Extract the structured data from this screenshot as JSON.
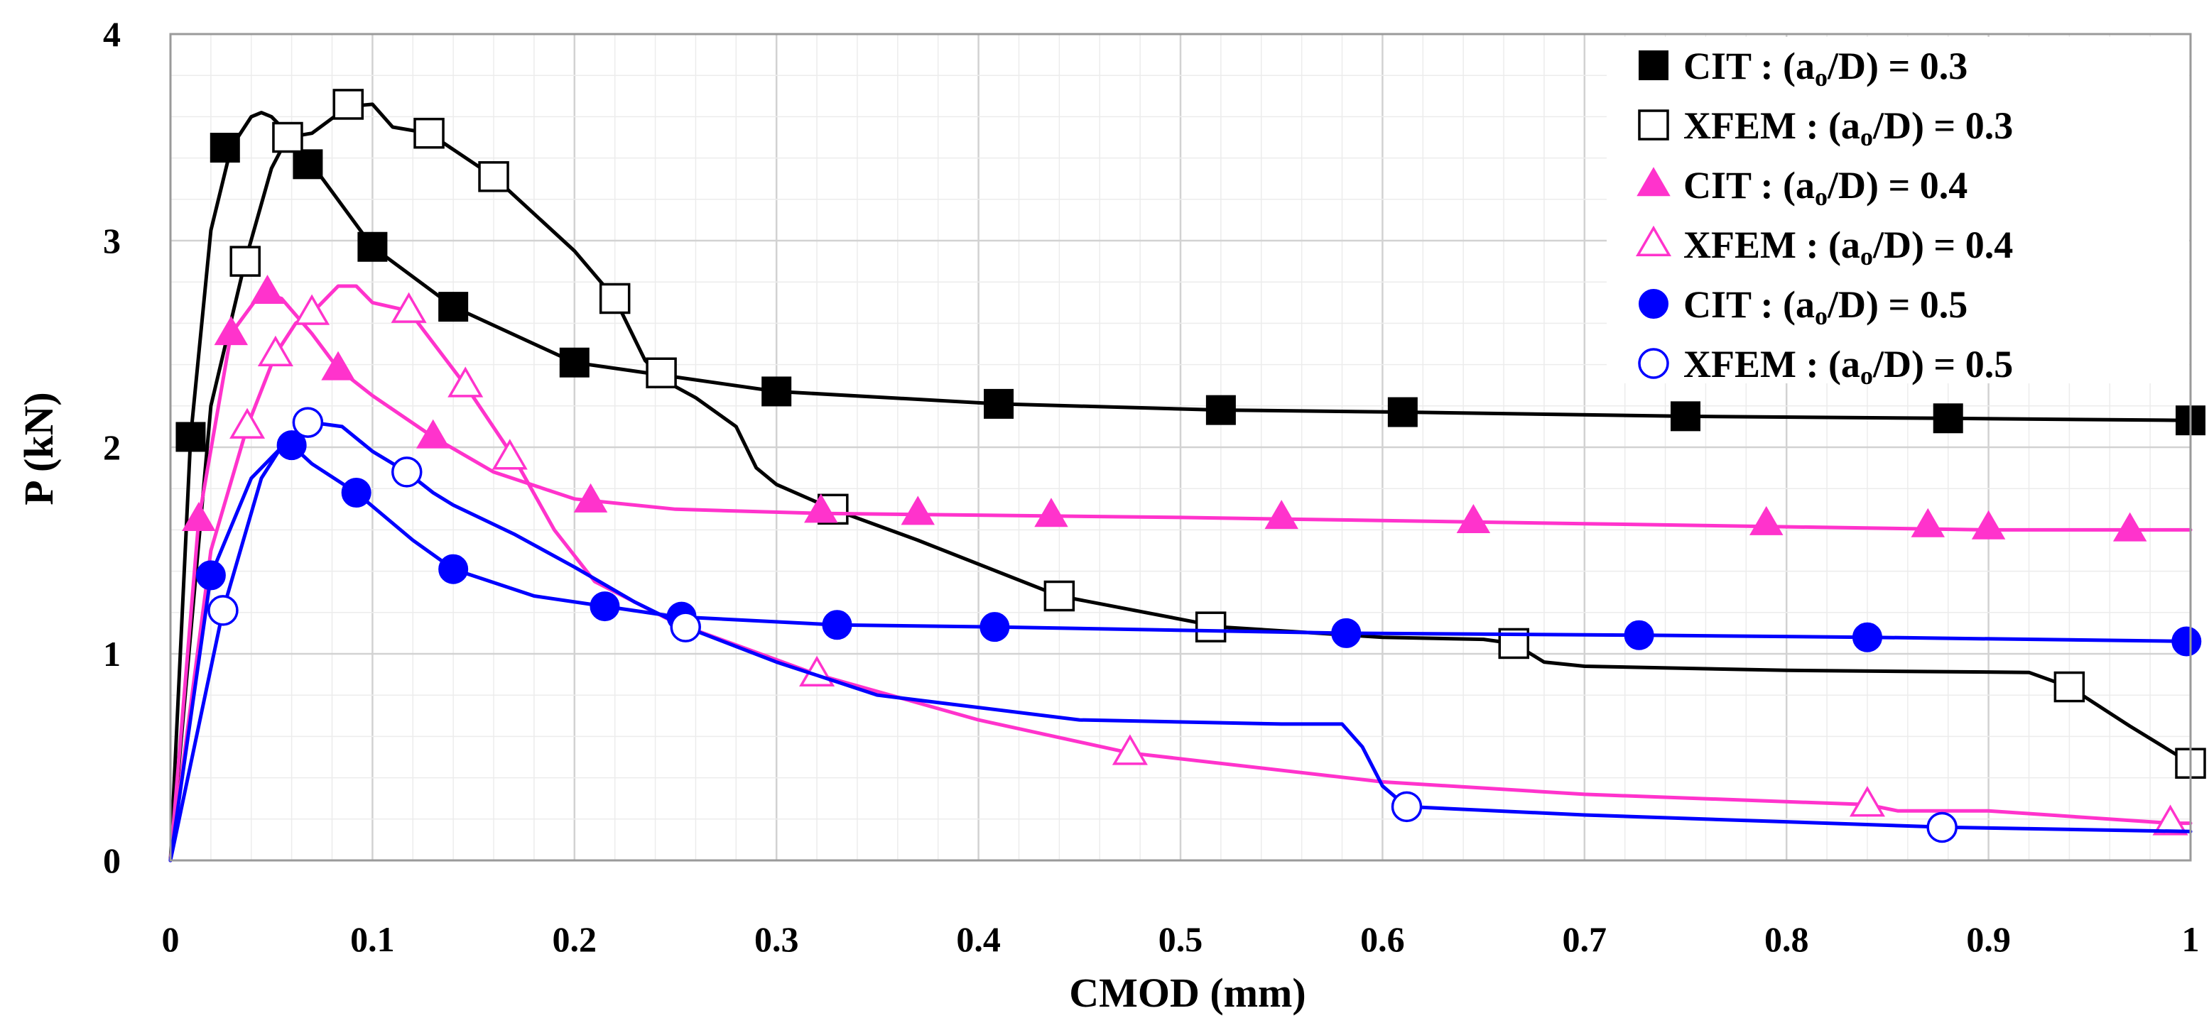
{
  "chart_data": {
    "type": "line",
    "xlabel": "CMOD (mm)",
    "ylabel": "P (kN)",
    "xlim": [
      0,
      1
    ],
    "ylim": [
      0,
      4
    ],
    "xticks": [
      "0",
      "0.1",
      "0.2",
      "0.3",
      "0.4",
      "0.5",
      "0.6",
      "0.7",
      "0.8",
      "0.9",
      "1"
    ],
    "yticks": [
      "0",
      "1",
      "2",
      "3",
      "4"
    ],
    "grid": true,
    "legend_position": "top-right",
    "series": [
      {
        "name": "CIT : (ao/D) = 0.3",
        "legend": {
          "prefix": "CIT : (a",
          "sub": "o",
          "suffix": "/D) = 0.3"
        },
        "color": "#000000",
        "marker": "square",
        "filled": true,
        "curve": [
          [
            0,
            0
          ],
          [
            0.01,
            2.05
          ],
          [
            0.02,
            3.05
          ],
          [
            0.03,
            3.45
          ],
          [
            0.04,
            3.6
          ],
          [
            0.045,
            3.62
          ],
          [
            0.05,
            3.6
          ],
          [
            0.06,
            3.5
          ],
          [
            0.07,
            3.37
          ],
          [
            0.1,
            2.97
          ],
          [
            0.14,
            2.68
          ],
          [
            0.2,
            2.41
          ],
          [
            0.3,
            2.27
          ],
          [
            0.41,
            2.21
          ],
          [
            0.52,
            2.18
          ],
          [
            0.61,
            2.17
          ],
          [
            0.75,
            2.15
          ],
          [
            0.88,
            2.14
          ],
          [
            1.0,
            2.13
          ]
        ],
        "points": [
          [
            0.01,
            2.05
          ],
          [
            0.027,
            3.45
          ],
          [
            0.068,
            3.37
          ],
          [
            0.1,
            2.97
          ],
          [
            0.14,
            2.68
          ],
          [
            0.2,
            2.41
          ],
          [
            0.3,
            2.27
          ],
          [
            0.41,
            2.21
          ],
          [
            0.52,
            2.18
          ],
          [
            0.61,
            2.17
          ],
          [
            0.75,
            2.15
          ],
          [
            0.88,
            2.14
          ],
          [
            1.0,
            2.13
          ]
        ]
      },
      {
        "name": "XFEM : (ao/D) = 0.3",
        "legend": {
          "prefix": "XFEM : (a",
          "sub": "o",
          "suffix": "/D) = 0.3"
        },
        "color": "#000000",
        "marker": "square",
        "filled": false,
        "curve": [
          [
            0,
            0
          ],
          [
            0.02,
            2.2
          ],
          [
            0.037,
            2.9
          ],
          [
            0.05,
            3.35
          ],
          [
            0.058,
            3.5
          ],
          [
            0.07,
            3.52
          ],
          [
            0.088,
            3.65
          ],
          [
            0.1,
            3.66
          ],
          [
            0.11,
            3.55
          ],
          [
            0.128,
            3.52
          ],
          [
            0.16,
            3.31
          ],
          [
            0.2,
            2.95
          ],
          [
            0.22,
            2.72
          ],
          [
            0.235,
            2.42
          ],
          [
            0.245,
            2.32
          ],
          [
            0.26,
            2.24
          ],
          [
            0.28,
            2.1
          ],
          [
            0.29,
            1.9
          ],
          [
            0.3,
            1.82
          ],
          [
            0.328,
            1.7
          ],
          [
            0.37,
            1.55
          ],
          [
            0.44,
            1.28
          ],
          [
            0.52,
            1.13
          ],
          [
            0.6,
            1.08
          ],
          [
            0.65,
            1.07
          ],
          [
            0.665,
            1.05
          ],
          [
            0.68,
            0.96
          ],
          [
            0.7,
            0.94
          ],
          [
            0.8,
            0.92
          ],
          [
            0.92,
            0.91
          ],
          [
            0.94,
            0.84
          ],
          [
            0.97,
            0.65
          ],
          [
            1.0,
            0.47
          ]
        ],
        "points": [
          [
            0.037,
            2.9
          ],
          [
            0.058,
            3.5
          ],
          [
            0.088,
            3.66
          ],
          [
            0.128,
            3.52
          ],
          [
            0.16,
            3.31
          ],
          [
            0.22,
            2.72
          ],
          [
            0.243,
            2.36
          ],
          [
            0.328,
            1.7
          ],
          [
            0.44,
            1.28
          ],
          [
            0.515,
            1.13
          ],
          [
            0.665,
            1.05
          ],
          [
            0.94,
            0.84
          ],
          [
            1.0,
            0.47
          ]
        ]
      },
      {
        "name": "CIT : (ao/D) = 0.4",
        "legend": {
          "prefix": "CIT : (a",
          "sub": "o",
          "suffix": "/D) = 0.4"
        },
        "color": "#ff33cc",
        "marker": "triangle",
        "filled": true,
        "curve": [
          [
            0,
            0
          ],
          [
            0.014,
            1.65
          ],
          [
            0.03,
            2.55
          ],
          [
            0.045,
            2.75
          ],
          [
            0.055,
            2.72
          ],
          [
            0.07,
            2.55
          ],
          [
            0.083,
            2.38
          ],
          [
            0.1,
            2.25
          ],
          [
            0.13,
            2.05
          ],
          [
            0.16,
            1.88
          ],
          [
            0.2,
            1.75
          ],
          [
            0.25,
            1.7
          ],
          [
            0.32,
            1.68
          ],
          [
            0.5,
            1.66
          ],
          [
            0.7,
            1.63
          ],
          [
            0.9,
            1.6
          ],
          [
            1.0,
            1.6
          ]
        ],
        "points": [
          [
            0.014,
            1.65
          ],
          [
            0.03,
            2.55
          ],
          [
            0.048,
            2.75
          ],
          [
            0.083,
            2.38
          ],
          [
            0.13,
            2.05
          ],
          [
            0.208,
            1.74
          ],
          [
            0.322,
            1.69
          ],
          [
            0.37,
            1.68
          ],
          [
            0.436,
            1.67
          ],
          [
            0.55,
            1.66
          ],
          [
            0.645,
            1.64
          ],
          [
            0.79,
            1.63
          ],
          [
            0.87,
            1.62
          ],
          [
            0.9,
            1.61
          ],
          [
            0.97,
            1.6
          ]
        ]
      },
      {
        "name": "XFEM : (ao/D) = 0.4",
        "legend": {
          "prefix": "XFEM : (a",
          "sub": "o",
          "suffix": "/D) = 0.4"
        },
        "color": "#ff33cc",
        "marker": "triangle",
        "filled": false,
        "curve": [
          [
            0,
            0
          ],
          [
            0.02,
            1.5
          ],
          [
            0.038,
            2.1
          ],
          [
            0.052,
            2.45
          ],
          [
            0.062,
            2.6
          ],
          [
            0.07,
            2.65
          ],
          [
            0.083,
            2.78
          ],
          [
            0.092,
            2.78
          ],
          [
            0.1,
            2.7
          ],
          [
            0.118,
            2.66
          ],
          [
            0.146,
            2.3
          ],
          [
            0.17,
            1.95
          ],
          [
            0.19,
            1.6
          ],
          [
            0.21,
            1.35
          ],
          [
            0.25,
            1.15
          ],
          [
            0.32,
            0.9
          ],
          [
            0.4,
            0.68
          ],
          [
            0.475,
            0.52
          ],
          [
            0.6,
            0.38
          ],
          [
            0.7,
            0.32
          ],
          [
            0.84,
            0.27
          ],
          [
            0.855,
            0.24
          ],
          [
            0.9,
            0.24
          ],
          [
            0.99,
            0.18
          ],
          [
            1.0,
            0.18
          ]
        ],
        "points": [
          [
            0.038,
            2.1
          ],
          [
            0.052,
            2.45
          ],
          [
            0.07,
            2.65
          ],
          [
            0.118,
            2.66
          ],
          [
            0.146,
            2.3
          ],
          [
            0.168,
            1.95
          ],
          [
            0.32,
            0.9
          ],
          [
            0.475,
            0.52
          ],
          [
            0.84,
            0.27
          ],
          [
            0.99,
            0.18
          ]
        ]
      },
      {
        "name": "CIT : (ao/D) = 0.5",
        "legend": {
          "prefix": "CIT : (a",
          "sub": "o",
          "suffix": "/D) = 0.5"
        },
        "color": "#0000ff",
        "marker": "circle",
        "filled": true,
        "curve": [
          [
            0,
            0
          ],
          [
            0.02,
            1.38
          ],
          [
            0.04,
            1.85
          ],
          [
            0.055,
            2.0
          ],
          [
            0.06,
            2.01
          ],
          [
            0.07,
            1.92
          ],
          [
            0.092,
            1.78
          ],
          [
            0.12,
            1.55
          ],
          [
            0.14,
            1.41
          ],
          [
            0.18,
            1.28
          ],
          [
            0.215,
            1.23
          ],
          [
            0.25,
            1.18
          ],
          [
            0.33,
            1.14
          ],
          [
            0.41,
            1.13
          ],
          [
            0.58,
            1.1
          ],
          [
            0.73,
            1.09
          ],
          [
            0.84,
            1.08
          ],
          [
            1.0,
            1.06
          ]
        ],
        "points": [
          [
            0.02,
            1.38
          ],
          [
            0.06,
            2.01
          ],
          [
            0.092,
            1.78
          ],
          [
            0.14,
            1.41
          ],
          [
            0.215,
            1.23
          ],
          [
            0.253,
            1.18
          ],
          [
            0.33,
            1.14
          ],
          [
            0.408,
            1.13
          ],
          [
            0.582,
            1.1
          ],
          [
            0.727,
            1.09
          ],
          [
            0.84,
            1.08
          ],
          [
            0.998,
            1.06
          ]
        ]
      },
      {
        "name": "XFEM : (ao/D) = 0.5",
        "legend": {
          "prefix": "XFEM : (a",
          "sub": "o",
          "suffix": "/D) = 0.5"
        },
        "color": "#0000ff",
        "marker": "circle",
        "filled": false,
        "curve": [
          [
            0,
            0
          ],
          [
            0.026,
            1.21
          ],
          [
            0.045,
            1.85
          ],
          [
            0.058,
            2.05
          ],
          [
            0.07,
            2.12
          ],
          [
            0.085,
            2.1
          ],
          [
            0.1,
            1.98
          ],
          [
            0.117,
            1.88
          ],
          [
            0.13,
            1.78
          ],
          [
            0.14,
            1.72
          ],
          [
            0.17,
            1.58
          ],
          [
            0.2,
            1.42
          ],
          [
            0.23,
            1.25
          ],
          [
            0.255,
            1.13
          ],
          [
            0.3,
            0.96
          ],
          [
            0.35,
            0.8
          ],
          [
            0.45,
            0.68
          ],
          [
            0.55,
            0.66
          ],
          [
            0.58,
            0.66
          ],
          [
            0.59,
            0.55
          ],
          [
            0.6,
            0.36
          ],
          [
            0.612,
            0.26
          ],
          [
            0.7,
            0.22
          ],
          [
            0.88,
            0.16
          ],
          [
            1.0,
            0.14
          ]
        ],
        "points": [
          [
            0.026,
            1.21
          ],
          [
            0.068,
            2.12
          ],
          [
            0.117,
            1.88
          ],
          [
            0.255,
            1.13
          ],
          [
            0.612,
            0.26
          ],
          [
            0.877,
            0.16
          ]
        ]
      }
    ]
  }
}
